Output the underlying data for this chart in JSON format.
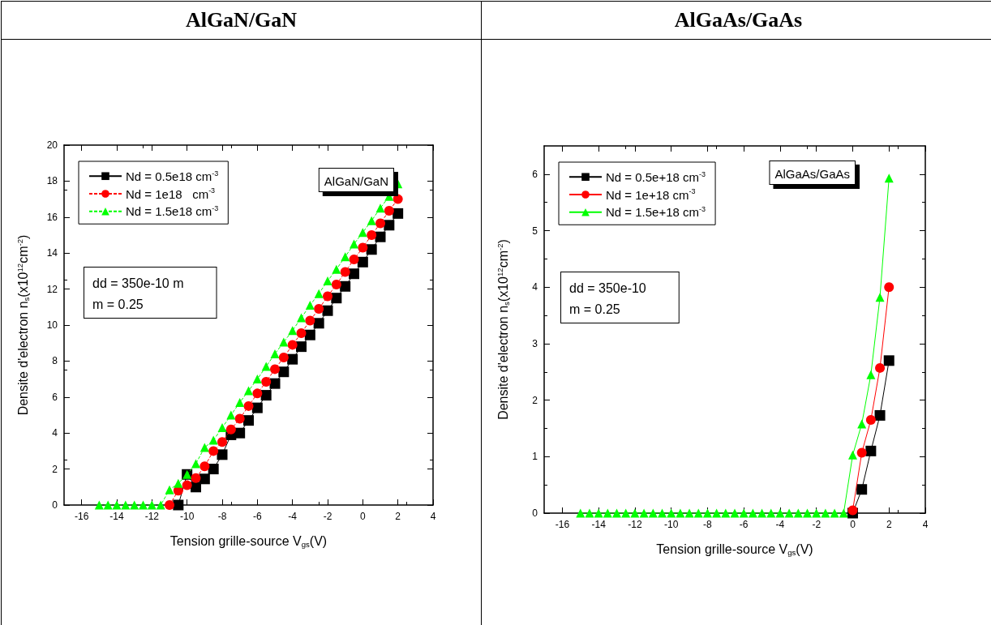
{
  "chart_data": [
    {
      "type": "line",
      "title": "AlGaN/GaN",
      "xlabel": "Tension grille-source V$_{gs}$(V)",
      "ylabel": "Densite d'electron n$_{s}$(x10$^{12}$cm$^{-2}$)",
      "x": [
        -15,
        -14.5,
        -14,
        -13.5,
        -13,
        -12.5,
        -12,
        -11.5,
        -11,
        -10.5,
        -10,
        -9.5,
        -9,
        -8.5,
        -8,
        -7.5,
        -7,
        -6.5,
        -6,
        -5.5,
        -5,
        -4.5,
        -4,
        -3.5,
        -3,
        -2.5,
        -2,
        -1.5,
        -1,
        -0.5,
        0,
        0.5,
        1,
        1.5,
        2
      ],
      "series": [
        {
          "name": "Nd = 0.5e18 cm$^{-3}$",
          "color": "#000000",
          "marker": "square",
          "line_style": "solid",
          "values": [
            null,
            null,
            null,
            null,
            null,
            null,
            null,
            null,
            null,
            0,
            1.7,
            1.0,
            1.45,
            2.0,
            2.8,
            3.9,
            4.0,
            4.7,
            5.4,
            6.1,
            6.75,
            7.4,
            8.1,
            8.8,
            9.45,
            10.1,
            10.8,
            11.5,
            12.15,
            12.85,
            13.5,
            14.2,
            14.9,
            15.55,
            16.2
          ]
        },
        {
          "name": "Nd = 1e18   cm$^{-3}$",
          "color": "#ff0000",
          "marker": "circle",
          "line_style": "dashed",
          "values": [
            null,
            null,
            null,
            null,
            null,
            null,
            null,
            null,
            0,
            0.8,
            1.1,
            1.5,
            2.15,
            3.0,
            3.5,
            4.2,
            4.8,
            5.5,
            6.2,
            6.85,
            7.55,
            8.2,
            8.9,
            9.55,
            10.25,
            10.9,
            11.6,
            12.25,
            12.95,
            13.65,
            14.3,
            15.0,
            15.65,
            16.35,
            17.0
          ]
        },
        {
          "name": "Nd = 1.5e18 cm$^{-3}$",
          "color": "#00ff00",
          "marker": "triangle",
          "line_style": "dashed",
          "values": [
            0,
            0,
            0,
            0,
            0,
            0,
            0,
            0,
            0.85,
            1.2,
            1.7,
            2.3,
            3.2,
            3.6,
            4.3,
            5.0,
            5.7,
            6.35,
            7.0,
            7.7,
            8.4,
            9.05,
            9.7,
            10.4,
            11.1,
            11.75,
            12.45,
            13.1,
            13.8,
            14.5,
            15.15,
            15.8,
            16.5,
            17.15,
            17.85
          ]
        }
      ],
      "xlim": [
        -17,
        4
      ],
      "xticks": [
        -16,
        -14,
        -12,
        -10,
        -8,
        -6,
        -4,
        -2,
        0,
        2,
        4
      ],
      "ylim": [
        0,
        20
      ],
      "yticks": [
        0,
        2,
        4,
        6,
        8,
        10,
        12,
        14,
        16,
        18,
        20
      ],
      "grid": false,
      "legend": "top left",
      "annotations": [
        "AlGaN/GaN",
        "dd = 350e-10 m\nm = 0.25"
      ]
    },
    {
      "type": "line",
      "title": "AlGaAs/GaAs",
      "xlabel": "Tension grille-source V$_{gs}$(V)",
      "ylabel": "Densite d'electron n$_{s}$(x10$^{12}$cm$^{-2}$)",
      "x": [
        -15,
        -14.5,
        -14,
        -13.5,
        -13,
        -12.5,
        -12,
        -11.5,
        -11,
        -10.5,
        -10,
        -9.5,
        -9,
        -8.5,
        -8,
        -7.5,
        -7,
        -6.5,
        -6,
        -5.5,
        -5,
        -4.5,
        -4,
        -3.5,
        -3,
        -2.5,
        -2,
        -1.5,
        -1,
        -0.5,
        0,
        0.5,
        1,
        1.5,
        2
      ],
      "series": [
        {
          "name": "Nd = 0.5e+18 cm$^{-3}$",
          "color": "#000000",
          "marker": "square",
          "line_style": "solid",
          "values": [
            null,
            null,
            null,
            null,
            null,
            null,
            null,
            null,
            null,
            null,
            null,
            null,
            null,
            null,
            null,
            null,
            null,
            null,
            null,
            null,
            null,
            null,
            null,
            null,
            null,
            null,
            null,
            null,
            null,
            null,
            0,
            0.42,
            1.1,
            1.73,
            2.7
          ]
        },
        {
          "name": "Nd = 1e+18 cm$^{-3}$",
          "color": "#ff0000",
          "marker": "circle",
          "line_style": "solid",
          "values": [
            null,
            null,
            null,
            null,
            null,
            null,
            null,
            null,
            null,
            null,
            null,
            null,
            null,
            null,
            null,
            null,
            null,
            null,
            null,
            null,
            null,
            null,
            null,
            null,
            null,
            null,
            null,
            null,
            null,
            null,
            0.05,
            1.07,
            1.65,
            2.57,
            4.0
          ]
        },
        {
          "name": "Nd = 1.5e+18 cm$^{-3}$",
          "color": "#00ff00",
          "marker": "triangle",
          "line_style": "solid",
          "values": [
            0,
            0,
            0,
            0,
            0,
            0,
            0,
            0,
            0,
            0,
            0,
            0,
            0,
            0,
            0,
            0,
            0,
            0,
            0,
            0,
            0,
            0,
            0,
            0,
            0,
            0,
            0,
            0,
            0,
            0,
            1.03,
            1.58,
            2.45,
            3.82,
            5.93
          ]
        }
      ],
      "xlim": [
        -17,
        4
      ],
      "xticks": [
        -16,
        -14,
        -12,
        -10,
        -8,
        -6,
        -4,
        -2,
        0,
        2,
        4
      ],
      "ylim": [
        0,
        6.5
      ],
      "yticks": [
        0,
        1,
        2,
        3,
        4,
        5,
        6
      ],
      "grid": false,
      "legend": "top left",
      "annotations": [
        "AlGaAs/GaAs",
        "dd = 350e-10\nm = 0.25"
      ]
    }
  ]
}
